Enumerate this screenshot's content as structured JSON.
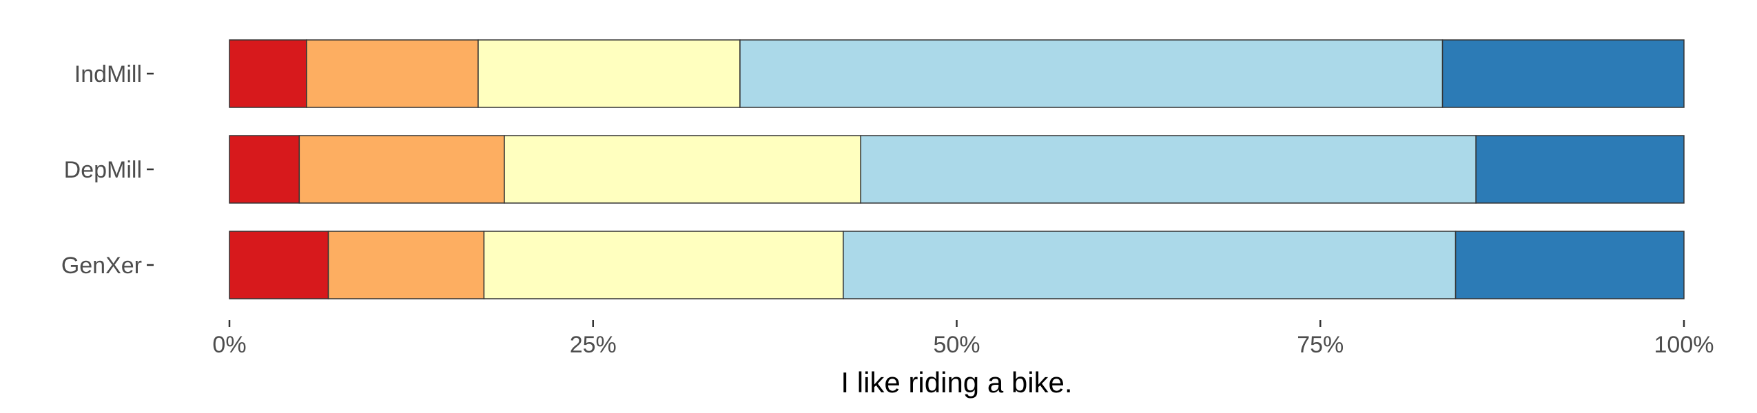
{
  "chart_data": {
    "type": "bar",
    "orientation": "horizontal",
    "stacked": true,
    "percent": true,
    "categories": [
      "IndMill",
      "DepMill",
      "GenXer"
    ],
    "series": [
      {
        "color": "#d7191c",
        "values": [
          5.3,
          4.8,
          6.8
        ]
      },
      {
        "color": "#fdae61",
        "values": [
          11.8,
          14.1,
          10.7
        ]
      },
      {
        "color": "#ffffbf",
        "values": [
          18.0,
          24.5,
          24.7
        ]
      },
      {
        "color": "#abd9e9",
        "values": [
          48.3,
          42.3,
          42.1
        ]
      },
      {
        "color": "#2c7bb6",
        "values": [
          16.6,
          14.3,
          15.7
        ]
      }
    ],
    "xticks": [
      "0%",
      "25%",
      "50%",
      "75%",
      "100%"
    ],
    "xtick_values": [
      0,
      25,
      50,
      75,
      100
    ],
    "xlim": [
      0,
      100
    ],
    "xlabel": "I like riding a bike.",
    "ylabel": "",
    "title": "",
    "grid": false,
    "legend": "none"
  }
}
